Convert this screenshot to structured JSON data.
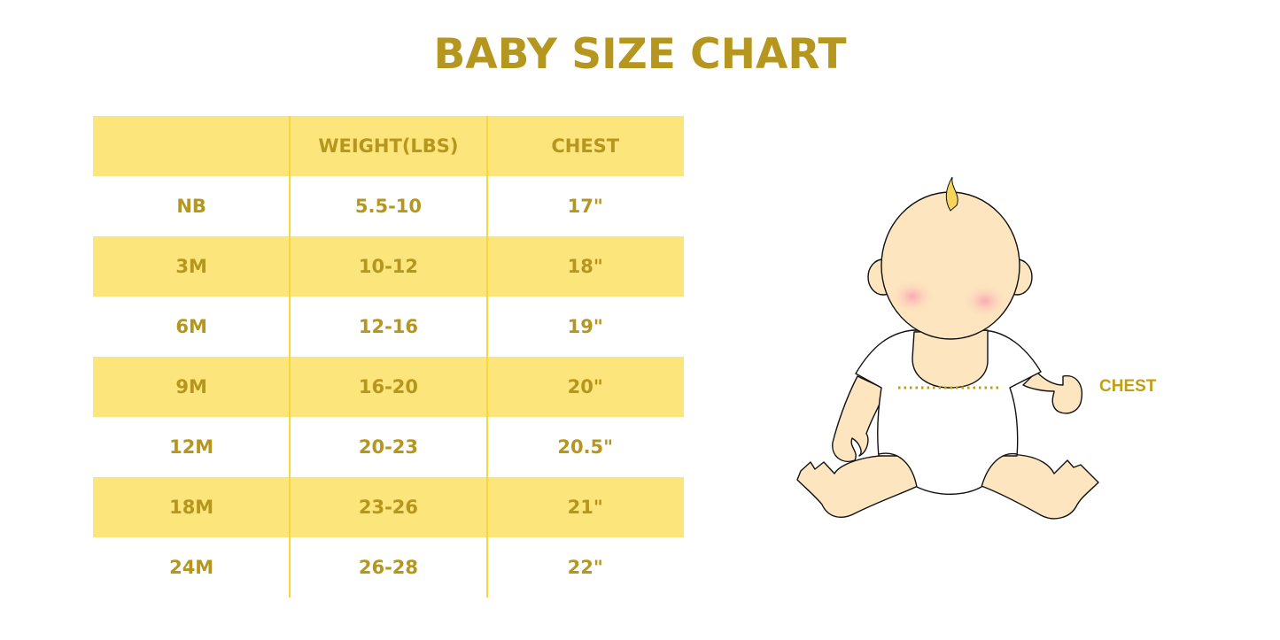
{
  "title": "BABY SIZE CHART",
  "table": {
    "headers": [
      "",
      "WEIGHT(LBS)",
      "CHEST"
    ],
    "rows": [
      [
        "NB",
        "5.5-10",
        "17\""
      ],
      [
        "3M",
        "10-12",
        "18\""
      ],
      [
        "6M",
        "12-16",
        "19\""
      ],
      [
        "9M",
        "16-20",
        "20\""
      ],
      [
        "12M",
        "20-23",
        "20.5\""
      ],
      [
        "18M",
        "23-26",
        "21\""
      ],
      [
        "24M",
        "26-28",
        "22\""
      ]
    ]
  },
  "illustration": {
    "chest_label": "CHEST"
  },
  "colors": {
    "accent_text": "#b5961e",
    "row_fill": "#fce57a",
    "skin": "#fde5bf",
    "cheek": "#f9b8b8"
  }
}
